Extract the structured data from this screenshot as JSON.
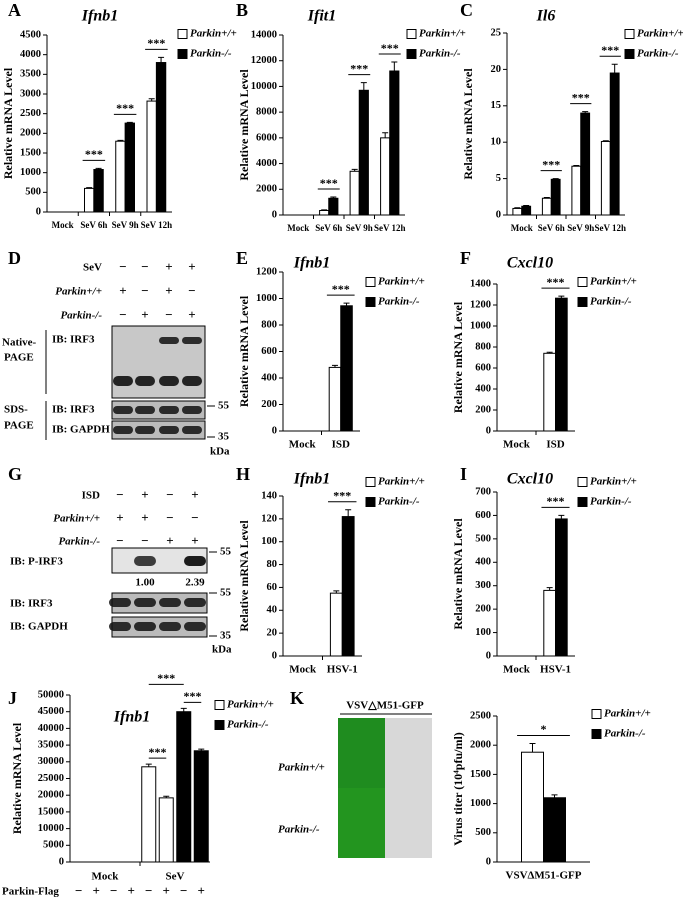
{
  "panel_labels": [
    "A",
    "B",
    "C",
    "D",
    "E",
    "F",
    "G",
    "H",
    "I",
    "J",
    "K"
  ],
  "chart_data": [
    {
      "type": "bar",
      "title": "Ifnb1",
      "ylabel": "Relative mRNA Level",
      "categories": [
        "Mock",
        "SeV 6h",
        "SeV 9h",
        "SeV 12h"
      ],
      "series": [
        {
          "name": "Parkin+/+",
          "color": "#ffffff",
          "values": [
            0,
            600,
            1800,
            2820
          ],
          "errors": [
            0,
            20,
            20,
            60
          ]
        },
        {
          "name": "Parkin-/-",
          "color": "#000000",
          "values": [
            0,
            1080,
            2260,
            3800
          ],
          "errors": [
            0,
            30,
            20,
            130
          ]
        }
      ],
      "significance": [
        null,
        "***",
        "***",
        "***"
      ],
      "ylim": [
        0,
        4500
      ],
      "yticks": [
        0,
        500,
        1000,
        1500,
        2000,
        2500,
        3000,
        3500,
        4000,
        4500
      ]
    },
    {
      "type": "bar",
      "title": "Ifit1",
      "ylabel": "Relative mRNA Level",
      "categories": [
        "Mock",
        "SeV 6h",
        "SeV 9h",
        "SeV 12h"
      ],
      "series": [
        {
          "name": "Parkin+/+",
          "color": "#ffffff",
          "values": [
            0,
            350,
            3400,
            6000
          ],
          "errors": [
            0,
            50,
            150,
            400
          ]
        },
        {
          "name": "Parkin-/-",
          "color": "#000000",
          "values": [
            0,
            1300,
            9700,
            11200
          ],
          "errors": [
            0,
            100,
            600,
            700
          ]
        }
      ],
      "significance": [
        null,
        "***",
        "***",
        "***"
      ],
      "ylim": [
        0,
        14000
      ],
      "yticks": [
        0,
        2000,
        4000,
        6000,
        8000,
        10000,
        12000,
        14000
      ]
    },
    {
      "type": "bar",
      "title": "Il6",
      "ylabel": "Relative mRNA Level",
      "categories": [
        "Mock",
        "SeV 6h",
        "SeV 9h",
        "SeV 12h"
      ],
      "series": [
        {
          "name": "Parkin+/+",
          "color": "#ffffff",
          "values": [
            0.9,
            2.3,
            6.7,
            10.1
          ],
          "errors": [
            0.1,
            0.1,
            0.1,
            0.1
          ]
        },
        {
          "name": "Parkin-/-",
          "color": "#000000",
          "values": [
            1.2,
            4.9,
            14,
            19.5
          ],
          "errors": [
            0.1,
            0.1,
            0.2,
            1.2
          ]
        }
      ],
      "significance": [
        null,
        "***",
        "***",
        "***"
      ],
      "ylim": [
        0,
        25
      ],
      "yticks": [
        0,
        5,
        10,
        15,
        20,
        25
      ]
    },
    {
      "type": "bar",
      "title": "Ifnb1",
      "ylabel": "Relative mRNA Level",
      "categories": [
        "Mock",
        "ISD"
      ],
      "series": [
        {
          "name": "Parkin+/+",
          "color": "#ffffff",
          "values": [
            0,
            480
          ],
          "errors": [
            0,
            15
          ]
        },
        {
          "name": "Parkin-/-",
          "color": "#000000",
          "values": [
            0,
            945
          ],
          "errors": [
            0,
            20
          ]
        }
      ],
      "significance": [
        null,
        "***"
      ],
      "ylim": [
        0,
        1200
      ],
      "yticks": [
        0,
        200,
        400,
        600,
        800,
        1000,
        1200
      ]
    },
    {
      "type": "bar",
      "title": "Cxcl10",
      "ylabel": "Relative mRNA Level",
      "categories": [
        "Mock",
        "ISD"
      ],
      "series": [
        {
          "name": "Parkin+/+",
          "color": "#ffffff",
          "values": [
            0,
            740
          ],
          "errors": [
            0,
            10
          ]
        },
        {
          "name": "Parkin-/-",
          "color": "#000000",
          "values": [
            0,
            1265
          ],
          "errors": [
            0,
            20
          ]
        }
      ],
      "significance": [
        null,
        "***"
      ],
      "ylim": [
        0,
        1400
      ],
      "yticks": [
        0,
        200,
        400,
        600,
        800,
        1000,
        1200,
        1400
      ]
    },
    {
      "type": "bar",
      "title": "Ifnb1",
      "ylabel": "Relative mRNA Level",
      "categories": [
        "Mock",
        "HSV-1"
      ],
      "series": [
        {
          "name": "Parkin+/+",
          "color": "#ffffff",
          "values": [
            0,
            55
          ],
          "errors": [
            0,
            2
          ]
        },
        {
          "name": "Parkin-/-",
          "color": "#000000",
          "values": [
            0,
            122
          ],
          "errors": [
            0,
            6
          ]
        }
      ],
      "significance": [
        null,
        "***"
      ],
      "ylim": [
        0,
        140
      ],
      "yticks": [
        0,
        20,
        40,
        60,
        80,
        100,
        120,
        140
      ]
    },
    {
      "type": "bar",
      "title": "Cxcl10",
      "ylabel": "Relative mRNA Level",
      "categories": [
        "Mock",
        "HSV-1"
      ],
      "series": [
        {
          "name": "Parkin+/+",
          "color": "#ffffff",
          "values": [
            0,
            280
          ],
          "errors": [
            0,
            12
          ]
        },
        {
          "name": "Parkin-/-",
          "color": "#000000",
          "values": [
            0,
            585
          ],
          "errors": [
            0,
            15
          ]
        }
      ],
      "significance": [
        null,
        "***"
      ],
      "ylim": [
        0,
        700
      ],
      "yticks": [
        0,
        100,
        200,
        300,
        400,
        500,
        600,
        700
      ]
    },
    {
      "type": "grouped_bar",
      "title": "Ifnb1",
      "ylabel": "Relative mRNA Level",
      "groups": [
        "Mock",
        "SeV"
      ],
      "flag_label": "Parkin-Flag",
      "flag_states": [
        "−",
        "+",
        "−",
        "+",
        "−",
        "+",
        "−",
        "+"
      ],
      "series": [
        {
          "name": "Parkin+/+",
          "color": "#ffffff",
          "values": [
            0,
            0,
            28500,
            19200
          ],
          "errors": [
            0,
            0,
            800,
            500
          ]
        },
        {
          "name": "Parkin-/-",
          "color": "#000000",
          "values": [
            0,
            0,
            45000,
            33300
          ],
          "errors": [
            0,
            0,
            1000,
            500
          ]
        }
      ],
      "significance": [
        "***",
        "***",
        "***"
      ],
      "ylim": [
        0,
        50000
      ],
      "yticks": [
        0,
        5000,
        10000,
        15000,
        20000,
        25000,
        30000,
        35000,
        40000,
        45000,
        50000
      ]
    },
    {
      "type": "bar",
      "ylabel": "Virus titer (10⁴pfu/ml)",
      "categories": [
        "VSVΔM51-GFP"
      ],
      "series": [
        {
          "name": "Parkin+/+",
          "color": "#ffffff",
          "values": [
            1880
          ],
          "errors": [
            150
          ]
        },
        {
          "name": "Parkin-/-",
          "color": "#000000",
          "values": [
            1100
          ],
          "errors": [
            50
          ]
        }
      ],
      "significance": [
        "*"
      ],
      "ylim": [
        0,
        2500
      ],
      "yticks": [
        0,
        500,
        1000,
        1500,
        2000,
        2500
      ]
    }
  ],
  "blot_d": {
    "conditions": [
      {
        "label": "SeV",
        "signs": [
          "−",
          "−",
          "+",
          "+"
        ]
      },
      {
        "label": "Parkin+/+",
        "signs": [
          "+",
          "−",
          "+",
          "−"
        ]
      },
      {
        "label": "Parkin-/-",
        "signs": [
          "−",
          "+",
          "−",
          "+"
        ]
      }
    ],
    "native_label": [
      "Native-",
      "PAGE"
    ],
    "sds_label": [
      "SDS-",
      "PAGE"
    ],
    "ib_labels": [
      "IB: IRF3",
      "IB: IRF3",
      "IB: GAPDH"
    ],
    "markers": [
      55,
      35
    ],
    "unit": "kDa"
  },
  "blot_g": {
    "conditions": [
      {
        "label": "ISD",
        "signs": [
          "−",
          "+",
          "−",
          "+"
        ]
      },
      {
        "label": "Parkin+/+",
        "signs": [
          "+",
          "+",
          "−",
          "−"
        ]
      },
      {
        "label": "Parkin-/-",
        "signs": [
          "−",
          "−",
          "+",
          "+"
        ]
      }
    ],
    "ib_labels": [
      "IB: P-IRF3",
      "IB: IRF3",
      "IB: GAPDH"
    ],
    "quantification": [
      "1.00",
      "2.39"
    ],
    "markers": [
      55,
      55,
      35
    ],
    "unit": "kDa"
  },
  "image_k": {
    "header": "VSV△M51-GFP",
    "rows": [
      "Parkin+/+",
      "Parkin-/-"
    ]
  }
}
